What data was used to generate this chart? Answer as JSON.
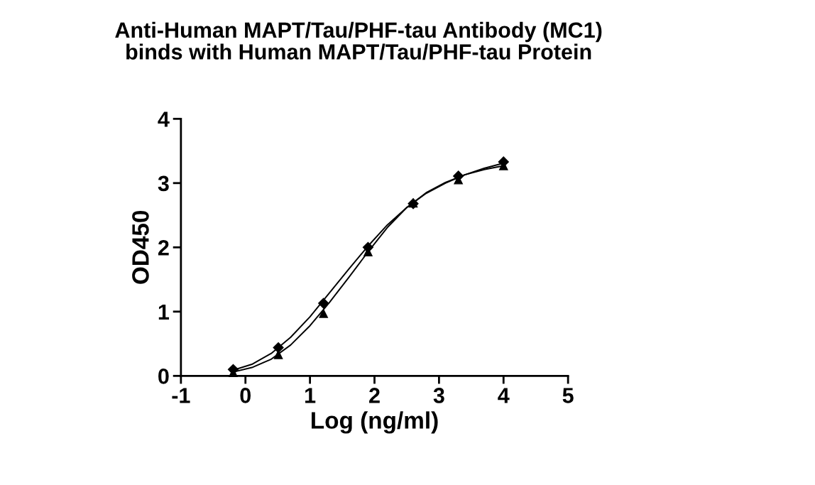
{
  "chart_data": {
    "type": "scatter",
    "title": "Anti-Human MAPT/Tau/PHF-tau Antibody (MC1)\nbinds with Human MAPT/Tau/PHF-tau Protein",
    "xlabel": "Log (ng/ml)",
    "ylabel": "OD450",
    "x": [
      -0.19,
      0.51,
      1.21,
      1.9,
      2.6,
      3.3,
      4.0
    ],
    "series": [
      {
        "color": "#000000",
        "marker": "triangle",
        "values": [
          0.05,
          0.33,
          0.97,
          1.93,
          2.69,
          3.05,
          3.27
        ]
      },
      {
        "color": "#000000",
        "marker": "diamond",
        "values": [
          0.1,
          0.44,
          1.13,
          2.0,
          2.68,
          3.11,
          3.33
        ]
      },
      {
        "type": "line",
        "color": "#000000",
        "marker": "none",
        "x": [
          -0.19,
          0.1,
          0.4,
          0.7,
          1.0,
          1.3,
          1.6,
          1.9,
          2.2,
          2.5,
          2.8,
          3.1,
          3.4,
          3.7,
          4.0
        ],
        "values": [
          0.06,
          0.13,
          0.26,
          0.48,
          0.78,
          1.14,
          1.53,
          1.93,
          2.31,
          2.62,
          2.85,
          3.01,
          3.13,
          3.21,
          3.27
        ]
      },
      {
        "type": "line",
        "color": "#000000",
        "marker": "none",
        "x": [
          -0.19,
          0.1,
          0.4,
          0.7,
          1.0,
          1.3,
          1.6,
          1.9,
          2.2,
          2.5,
          2.8,
          3.1,
          3.4,
          3.7,
          4.0
        ],
        "values": [
          0.09,
          0.18,
          0.35,
          0.6,
          0.92,
          1.29,
          1.66,
          2.02,
          2.35,
          2.62,
          2.84,
          3.0,
          3.13,
          3.23,
          3.31
        ]
      }
    ],
    "xlim": [
      -1,
      5
    ],
    "xticks": [
      -1,
      0,
      1,
      2,
      3,
      4,
      5
    ],
    "ylim": [
      0,
      4
    ],
    "yticks": [
      0,
      1,
      2,
      3,
      4
    ],
    "grid": false,
    "line_style": "solid"
  }
}
